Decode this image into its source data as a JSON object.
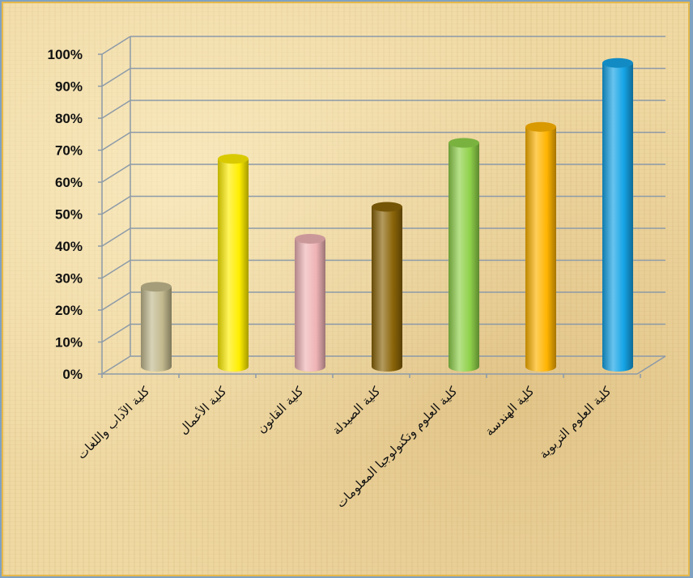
{
  "chart_data": {
    "type": "bar",
    "title": "",
    "xlabel": "",
    "ylabel": "",
    "ylim": [
      0,
      100
    ],
    "y_ticks": [
      "0%",
      "10%",
      "20%",
      "30%",
      "40%",
      "50%",
      "60%",
      "70%",
      "80%",
      "90%",
      "100%"
    ],
    "grid": true,
    "legend": "none",
    "categories": [
      "كلية الآداب واللغات",
      "كلية الأعمال",
      "كلية القانون",
      "كلية الصيدلة",
      "كلية العلوم وتكنولوجيا المعلومات",
      "كلية الهندسة",
      "كلية العلوم التربوية"
    ],
    "series": [
      {
        "values": [
          25,
          65,
          40,
          50,
          70,
          75,
          95
        ],
        "colors": [
          "#c2b98e",
          "#ffee00",
          "#efb3b5",
          "#8a6408",
          "#8fd14a",
          "#ffb400",
          "#15a4e6"
        ]
      }
    ],
    "colors": {
      "background": "#f0d9a3",
      "border": "#e6b84a",
      "gridline": "#8c9aa8"
    }
  }
}
